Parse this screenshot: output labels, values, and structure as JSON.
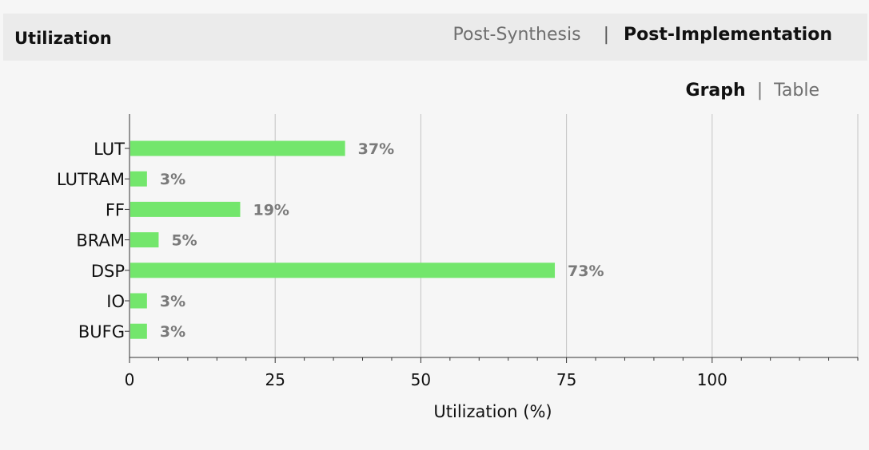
{
  "header": {
    "title": "Utilization",
    "tabs": [
      {
        "label": "Post-Synthesis",
        "active": false
      },
      {
        "label": "Post-Implementation",
        "active": true
      }
    ]
  },
  "view_toggle": {
    "graph_label": "Graph",
    "table_label": "Table",
    "active": "Graph"
  },
  "colors": {
    "bar": "#73e66c",
    "value_label": "#7a7a7a",
    "grid": "#c4c4c4",
    "axis": "#333333"
  },
  "chart_data": {
    "type": "bar",
    "orientation": "horizontal",
    "categories": [
      "LUT",
      "LUTRAM",
      "FF",
      "BRAM",
      "DSP",
      "IO",
      "BUFG"
    ],
    "values": [
      37,
      3,
      19,
      5,
      73,
      3,
      3
    ],
    "value_labels": [
      "37%",
      "3%",
      "19%",
      "5%",
      "73%",
      "3%",
      "3%"
    ],
    "xlabel": "Utilization (%)",
    "xlim": [
      0,
      125
    ],
    "xticks": [
      0,
      25,
      50,
      75,
      100
    ],
    "xtick_labels": [
      "0",
      "25",
      "50",
      "75",
      "100"
    ],
    "minor_tick_step": 5,
    "grid": true
  }
}
